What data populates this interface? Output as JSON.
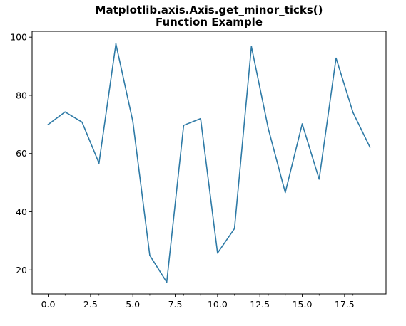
{
  "chart_data": {
    "type": "line",
    "title_lines": [
      "Matplotlib.axis.Axis.get_minor_ticks()",
      "Function Example"
    ],
    "xlabel": "",
    "ylabel": "",
    "x": [
      0,
      1,
      2,
      3,
      4,
      5,
      6,
      7,
      8,
      9,
      10,
      11,
      12,
      13,
      14,
      15,
      16,
      17,
      18,
      19
    ],
    "series": [
      {
        "values": [
          70,
          74.3,
          70.8,
          56.7,
          97.7,
          71,
          25,
          15.8,
          69.7,
          72,
          25.8,
          34.2,
          96.8,
          68.5,
          46.6,
          70.2,
          51.2,
          92.8,
          74.1,
          62.2
        ],
        "color": "#2e7aa6"
      }
    ],
    "xlim": [
      -0.95,
      19.95
    ],
    "ylim": [
      11.75,
      102.0
    ],
    "x_major_ticks": [
      0,
      2.5,
      5,
      7.5,
      10,
      12.5,
      15,
      17.5
    ],
    "x_major_tick_labels": [
      "0.0",
      "2.5",
      "5.0",
      "7.5",
      "10.0",
      "12.5",
      "15.0",
      "17.5"
    ],
    "x_minor_ticks": [
      1,
      3,
      4,
      6,
      8,
      9,
      11,
      13,
      14,
      16,
      18,
      19
    ],
    "y_major_ticks": [
      20,
      40,
      60,
      80,
      100
    ],
    "y_major_tick_labels": [
      "20",
      "40",
      "60",
      "80",
      "100"
    ],
    "grid": false,
    "legend": "none"
  }
}
